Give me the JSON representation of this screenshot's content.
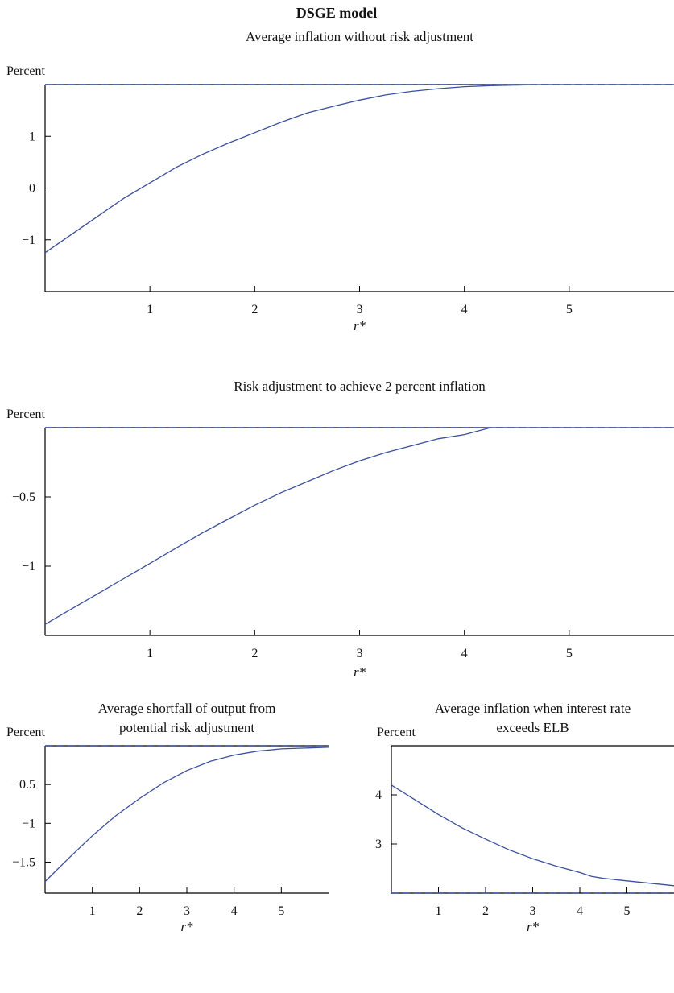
{
  "figure_title": "DSGE model",
  "colors": {
    "line": "#3a4f9c",
    "reference": "#3a4f9c",
    "axis": "#000000",
    "frame": "#000000"
  },
  "chart_data": [
    {
      "type": "line",
      "title": "Average inflation without risk adjustment",
      "ylabel": "Percent",
      "xlabel": "r*",
      "xlim": [
        0,
        6
      ],
      "ylim": [
        -2,
        2
      ],
      "x_ticks": [
        1,
        2,
        3,
        4,
        5
      ],
      "x_tick_labels": [
        "1",
        "2",
        "3",
        "4",
        "5"
      ],
      "y_ticks": [
        -1,
        0,
        1
      ],
      "y_tick_labels": [
        "−1",
        "0",
        "1"
      ],
      "reference_line": {
        "style": "dashed",
        "y": 2
      },
      "series": [
        {
          "x": [
            0,
            0.25,
            0.5,
            0.75,
            1,
            1.25,
            1.5,
            1.75,
            2,
            2.25,
            2.5,
            2.75,
            3,
            3.25,
            3.5,
            3.75,
            4,
            4.25,
            4.5,
            4.75,
            5,
            5.25,
            5.5,
            5.75,
            6
          ],
          "y": [
            -1.25,
            -0.9,
            -0.55,
            -0.2,
            0.1,
            0.4,
            0.65,
            0.87,
            1.07,
            1.27,
            1.45,
            1.58,
            1.7,
            1.8,
            1.87,
            1.92,
            1.96,
            1.98,
            1.99,
            2.0,
            2.0,
            2.0,
            2.0,
            2.0,
            2.0
          ]
        }
      ]
    },
    {
      "type": "line",
      "title": "Risk adjustment to achieve 2 percent inflation",
      "ylabel": "Percent",
      "xlabel": "r*",
      "xlim": [
        0,
        6
      ],
      "ylim": [
        -1.5,
        0
      ],
      "x_ticks": [
        1,
        2,
        3,
        4,
        5
      ],
      "x_tick_labels": [
        "1",
        "2",
        "3",
        "4",
        "5"
      ],
      "y_ticks": [
        -1,
        -0.5
      ],
      "y_tick_labels": [
        "−1",
        "−0.5"
      ],
      "reference_line": {
        "style": "dashed",
        "y": 0
      },
      "series": [
        {
          "x": [
            0,
            0.25,
            0.5,
            0.75,
            1,
            1.25,
            1.5,
            1.75,
            2,
            2.25,
            2.5,
            2.75,
            3,
            3.25,
            3.5,
            3.75,
            4,
            4.25,
            4.5,
            4.75,
            5,
            5.25,
            5.5,
            5.75,
            6
          ],
          "y": [
            -1.42,
            -1.31,
            -1.2,
            -1.09,
            -0.98,
            -0.87,
            -0.76,
            -0.66,
            -0.56,
            -0.47,
            -0.39,
            -0.31,
            -0.24,
            -0.18,
            -0.13,
            -0.08,
            -0.05,
            0,
            0,
            0,
            0,
            0,
            0,
            0,
            0
          ]
        }
      ]
    },
    {
      "type": "line",
      "title": [
        "Average shortfall of output from",
        "potential risk adjustment"
      ],
      "ylabel": "Percent",
      "xlabel": "r*",
      "xlim": [
        0,
        6
      ],
      "ylim": [
        -1.9,
        0
      ],
      "x_ticks": [
        1,
        2,
        3,
        4,
        5
      ],
      "x_tick_labels": [
        "1",
        "2",
        "3",
        "4",
        "5"
      ],
      "y_ticks": [
        -1.5,
        -1,
        -0.5
      ],
      "y_tick_labels": [
        "−1.5",
        "−1",
        "−0.5"
      ],
      "reference_line": {
        "style": "dashed",
        "y": 0
      },
      "series": [
        {
          "x": [
            0,
            0.5,
            1,
            1.5,
            2,
            2.5,
            3,
            3.5,
            4,
            4.5,
            5,
            5.5,
            6
          ],
          "y": [
            -1.75,
            -1.45,
            -1.16,
            -0.9,
            -0.68,
            -0.48,
            -0.32,
            -0.2,
            -0.12,
            -0.07,
            -0.04,
            -0.03,
            -0.02
          ]
        }
      ]
    },
    {
      "type": "line",
      "title": [
        "Average inflation when interest rate",
        "exceeds ELB"
      ],
      "ylabel": "Percent",
      "xlabel": "r*",
      "xlim": [
        0,
        6
      ],
      "ylim": [
        2,
        5
      ],
      "x_ticks": [
        1,
        2,
        3,
        4,
        5
      ],
      "x_tick_labels": [
        "1",
        "2",
        "3",
        "4",
        "5"
      ],
      "y_ticks": [
        3,
        4
      ],
      "y_tick_labels": [
        "3",
        "4"
      ],
      "reference_line": {
        "style": "dashed",
        "y": 2
      },
      "series": [
        {
          "x": [
            0,
            0.5,
            1,
            1.5,
            2,
            2.5,
            3,
            3.5,
            4,
            4.25,
            4.5,
            5,
            5.5,
            6
          ],
          "y": [
            4.2,
            3.9,
            3.6,
            3.33,
            3.1,
            2.88,
            2.7,
            2.55,
            2.42,
            2.34,
            2.3,
            2.25,
            2.2,
            2.15
          ]
        }
      ]
    }
  ]
}
